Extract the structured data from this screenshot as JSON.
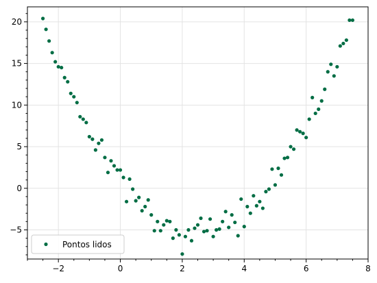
{
  "chart_data": {
    "type": "scatter",
    "title": "",
    "xlabel": "",
    "ylabel": "",
    "xlim": [
      -3,
      8
    ],
    "ylim": [
      -8.5,
      21.8
    ],
    "x_ticks": [
      -2,
      0,
      2,
      4,
      6,
      8
    ],
    "y_ticks": [
      -5,
      0,
      5,
      10,
      15,
      20
    ],
    "x_tick_labels": [
      "−2",
      "0",
      "2",
      "4",
      "6",
      "8"
    ],
    "y_tick_labels": [
      "−5",
      "0",
      "5",
      "10",
      "15",
      "20"
    ],
    "grid": true,
    "legend_position": "lower-left",
    "series": [
      {
        "name": "Pontos lidos",
        "color": "#006d44",
        "marker": "circle",
        "x": [
          -2.5,
          -2.4,
          -2.3,
          -2.2,
          -2.1,
          -2.0,
          -1.9,
          -1.8,
          -1.7,
          -1.6,
          -1.5,
          -1.4,
          -1.3,
          -1.2,
          -1.1,
          -1.0,
          -0.9,
          -0.8,
          -0.7,
          -0.6,
          -0.5,
          -0.4,
          -0.3,
          -0.2,
          -0.1,
          0.0,
          0.1,
          0.2,
          0.3,
          0.4,
          0.5,
          0.6,
          0.7,
          0.8,
          0.9,
          1.0,
          1.1,
          1.2,
          1.3,
          1.4,
          1.5,
          1.6,
          1.7,
          1.8,
          1.9,
          2.0,
          2.1,
          2.2,
          2.3,
          2.4,
          2.5,
          2.6,
          2.7,
          2.8,
          2.9,
          3.0,
          3.1,
          3.2,
          3.3,
          3.4,
          3.5,
          3.6,
          3.7,
          3.8,
          3.9,
          4.0,
          4.1,
          4.2,
          4.3,
          4.4,
          4.5,
          4.6,
          4.7,
          4.8,
          4.9,
          5.0,
          5.1,
          5.2,
          5.3,
          5.4,
          5.5,
          5.6,
          5.7,
          5.8,
          5.9,
          6.0,
          6.1,
          6.2,
          6.3,
          6.4,
          6.5,
          6.6,
          6.7,
          6.8,
          6.9,
          7.0,
          7.1,
          7.2,
          7.3,
          7.4,
          7.5
        ],
        "y": [
          20.4,
          19.1,
          17.7,
          16.3,
          15.2,
          14.6,
          14.5,
          13.3,
          12.8,
          11.4,
          11.0,
          10.3,
          8.6,
          8.3,
          7.9,
          6.2,
          5.9,
          4.6,
          5.4,
          5.8,
          3.7,
          1.9,
          3.3,
          2.7,
          2.2,
          2.2,
          1.3,
          -1.6,
          1.1,
          -0.1,
          -1.5,
          -1.1,
          -2.7,
          -2.2,
          -1.4,
          -3.2,
          -5.1,
          -4.0,
          -5.1,
          -4.4,
          -3.9,
          -4.0,
          -6.0,
          -5.0,
          -5.6,
          -7.9,
          -5.8,
          -5.0,
          -6.3,
          -4.8,
          -4.4,
          -3.6,
          -5.2,
          -5.1,
          -3.7,
          -5.8,
          -5.0,
          -4.9,
          -4.0,
          -2.8,
          -4.7,
          -3.2,
          -4.1,
          -5.7,
          -1.3,
          -4.6,
          -2.2,
          -3.0,
          -0.9,
          -2.1,
          -1.6,
          -2.4,
          -0.4,
          -0.1,
          2.3,
          0.4,
          2.4,
          1.6,
          3.6,
          3.7,
          5.0,
          4.7,
          7.0,
          6.8,
          6.6,
          6.1,
          8.3,
          10.9,
          9.0,
          9.5,
          10.5,
          11.9,
          14.0,
          14.9,
          13.5,
          14.6,
          17.1,
          17.4,
          17.8,
          20.2,
          20.2
        ]
      }
    ]
  }
}
